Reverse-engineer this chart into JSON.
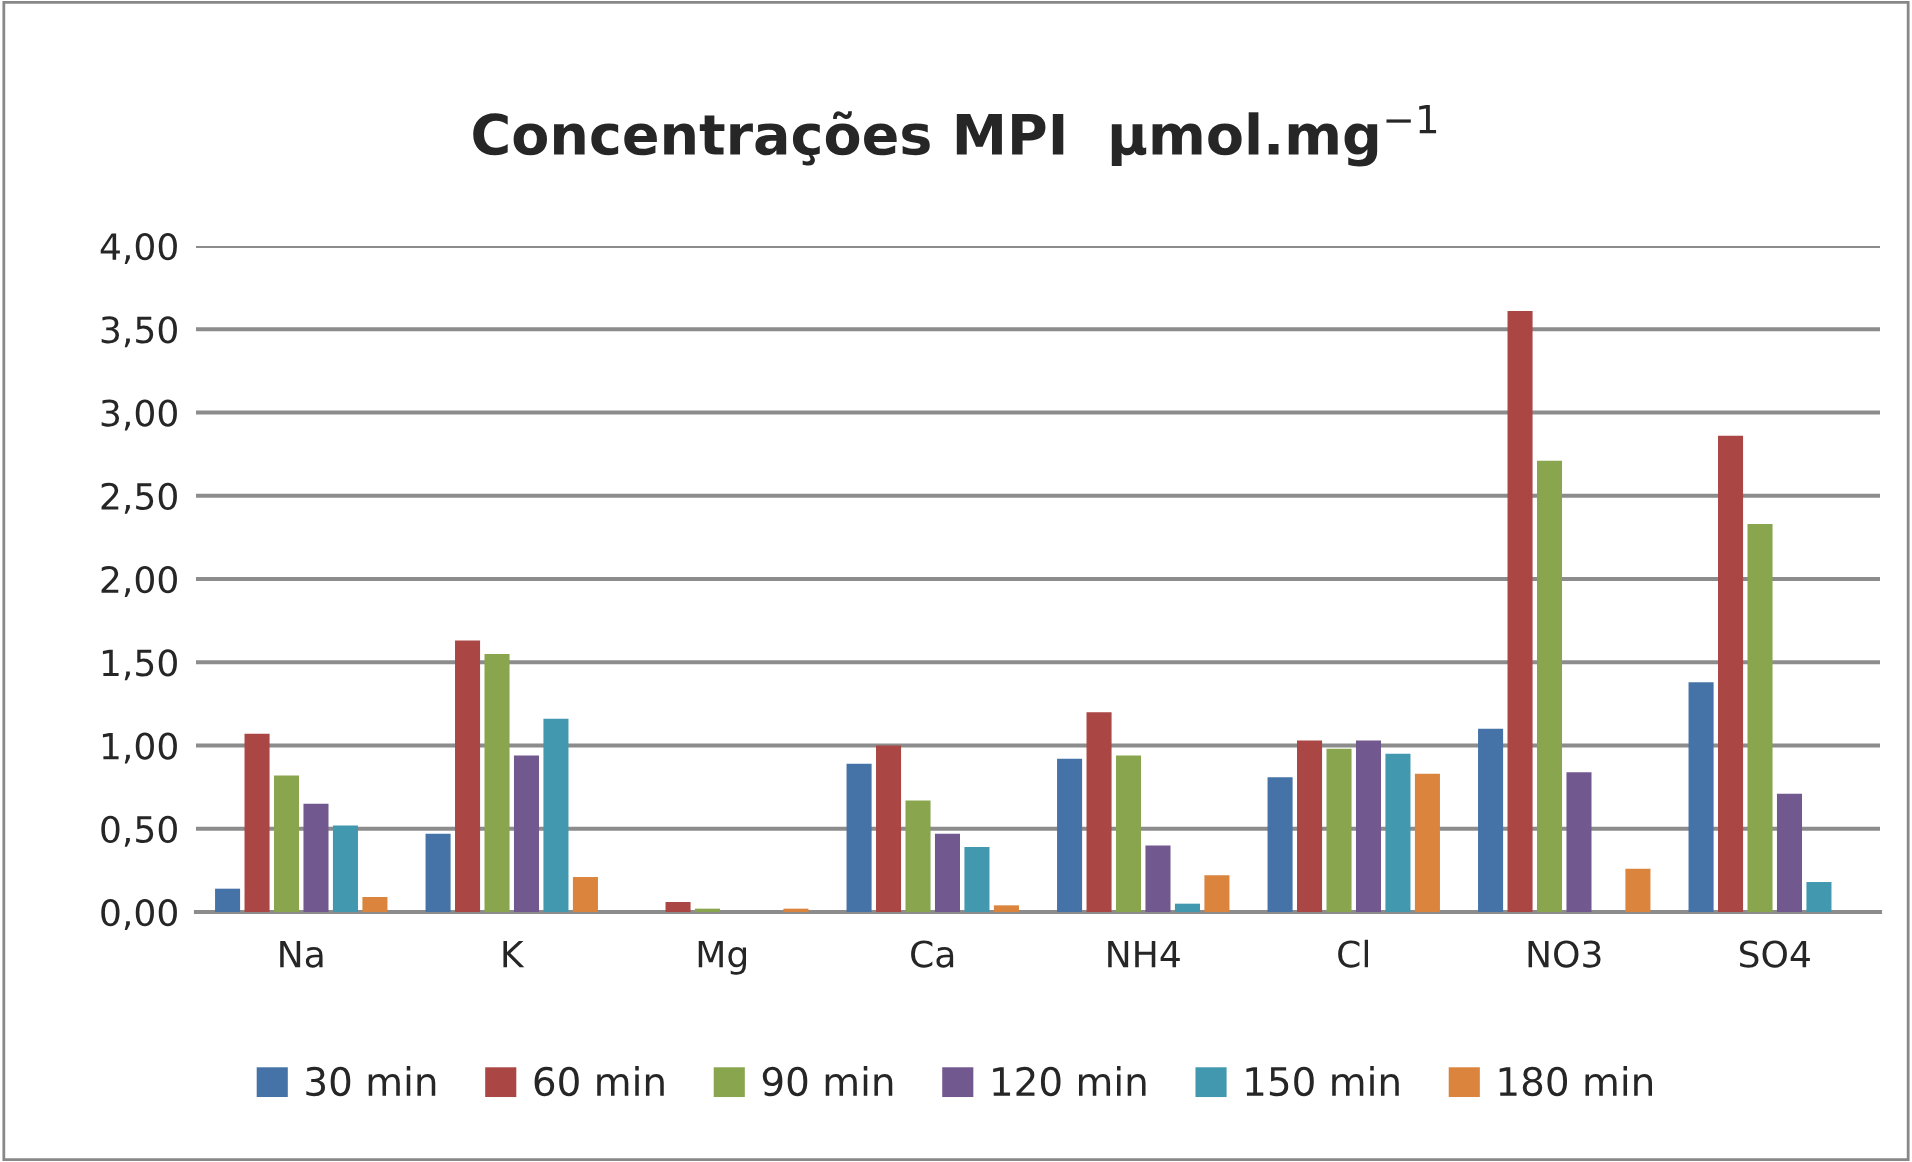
{
  "chart_data": {
    "type": "bar",
    "title": "Concentrações MPI  μmol.mg$^{−1}$",
    "categories": [
      "Na",
      "K",
      "Mg",
      "Ca",
      "NH4",
      "Cl",
      "NO3",
      "SO4"
    ],
    "series": [
      {
        "name": "30 min",
        "color": "#4573a7",
        "values": [
          0.14,
          0.47,
          null,
          0.89,
          0.92,
          0.81,
          1.1,
          1.38
        ]
      },
      {
        "name": "60 min",
        "color": "#aa4644",
        "values": [
          1.07,
          1.63,
          0.06,
          1.0,
          1.2,
          1.03,
          3.61,
          2.86
        ]
      },
      {
        "name": "90 min",
        "color": "#89a54e",
        "values": [
          0.82,
          1.55,
          0.02,
          0.67,
          0.94,
          0.98,
          2.71,
          2.33
        ]
      },
      {
        "name": "120 min",
        "color": "#71588f",
        "values": [
          0.65,
          0.94,
          null,
          0.47,
          0.4,
          1.03,
          0.84,
          0.71
        ]
      },
      {
        "name": "150 min",
        "color": "#4198af",
        "values": [
          0.52,
          1.16,
          null,
          0.39,
          0.05,
          0.95,
          null,
          0.18
        ]
      },
      {
        "name": "180 min",
        "color": "#db843d",
        "values": [
          0.09,
          0.21,
          0.02,
          0.04,
          0.22,
          0.83,
          0.26,
          null
        ]
      }
    ],
    "ylim": [
      0,
      4
    ],
    "yticks": [
      {
        "value": 0,
        "label": "0,00"
      },
      {
        "value": 0.5,
        "label": "0,50"
      },
      {
        "value": 1,
        "label": "1,00"
      },
      {
        "value": 1.5,
        "label": "1,50"
      },
      {
        "value": 2,
        "label": "2,00"
      },
      {
        "value": 2.5,
        "label": "2,50"
      },
      {
        "value": 3,
        "label": "3,00"
      },
      {
        "value": 3.5,
        "label": "3,50"
      },
      {
        "value": 4,
        "label": "4,00"
      }
    ],
    "grid": "y",
    "legend": "bottom"
  }
}
